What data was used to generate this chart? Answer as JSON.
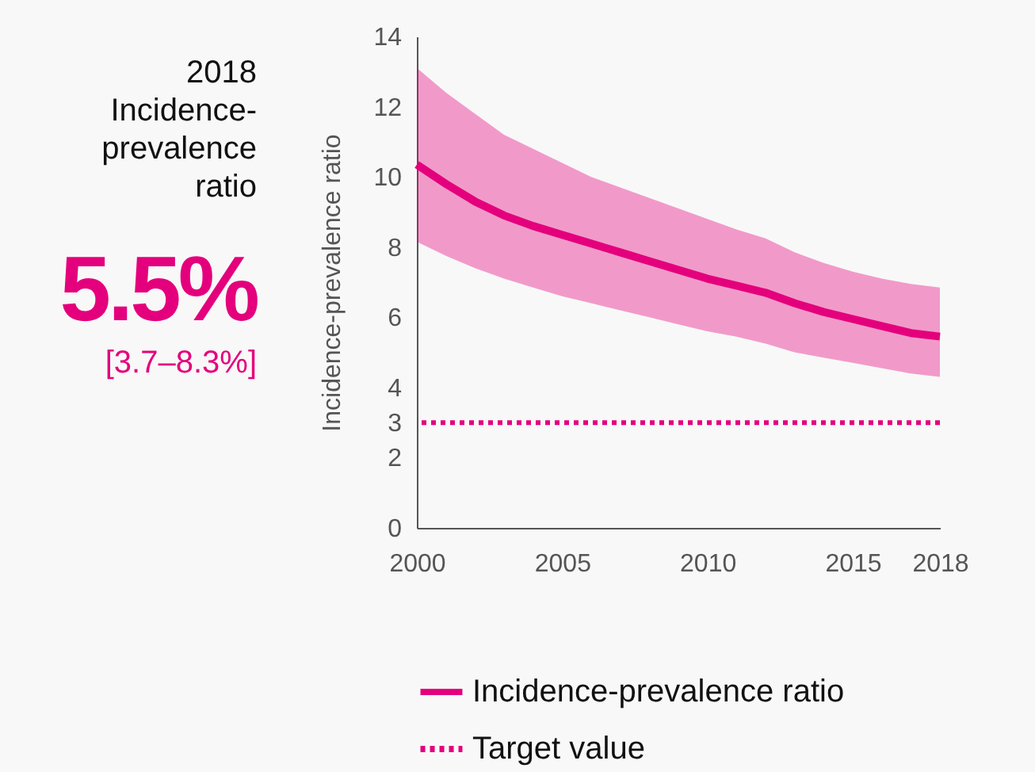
{
  "chart_data": {
    "type": "line",
    "ylabel": "Incidence-prevalence ratio",
    "annotations": [
      "2018 Incidence-prevalence ratio",
      "5.5%",
      "[3.7–8.3%]"
    ],
    "x": [
      2000,
      2001,
      2002,
      2003,
      2004,
      2005,
      2006,
      2007,
      2008,
      2009,
      2010,
      2011,
      2012,
      2013,
      2014,
      2015,
      2016,
      2017,
      2018
    ],
    "series": [
      {
        "name": "Incidence-prevalence ratio",
        "color": "#e4007c",
        "values": [
          10.35,
          9.8,
          9.3,
          8.9,
          8.6,
          8.35,
          8.1,
          7.85,
          7.6,
          7.35,
          7.1,
          6.9,
          6.7,
          6.4,
          6.15,
          5.95,
          5.75,
          5.55,
          5.45
        ],
        "upper": [
          13.1,
          12.4,
          11.8,
          11.2,
          10.8,
          10.4,
          10.0,
          9.7,
          9.4,
          9.1,
          8.8,
          8.5,
          8.25,
          7.85,
          7.55,
          7.3,
          7.1,
          6.95,
          6.85
        ],
        "lower": [
          8.15,
          7.75,
          7.4,
          7.1,
          6.85,
          6.6,
          6.4,
          6.2,
          6.0,
          5.8,
          5.6,
          5.45,
          5.25,
          5.0,
          4.85,
          4.7,
          4.55,
          4.4,
          4.3
        ]
      }
    ],
    "ref_lines": [
      {
        "axis": "y",
        "value": 3,
        "label": "Target value",
        "color": "#e4007c",
        "line_style": "dotted"
      }
    ],
    "xlim": [
      2000,
      2018
    ],
    "xticks": [
      2000,
      2005,
      2010,
      2015,
      2018
    ],
    "ylim": [
      0,
      14
    ],
    "yticks": [
      0,
      2,
      3,
      4,
      6,
      8,
      10,
      12,
      14
    ],
    "grid": false,
    "legend": "bottom",
    "line_style": "solid"
  }
}
